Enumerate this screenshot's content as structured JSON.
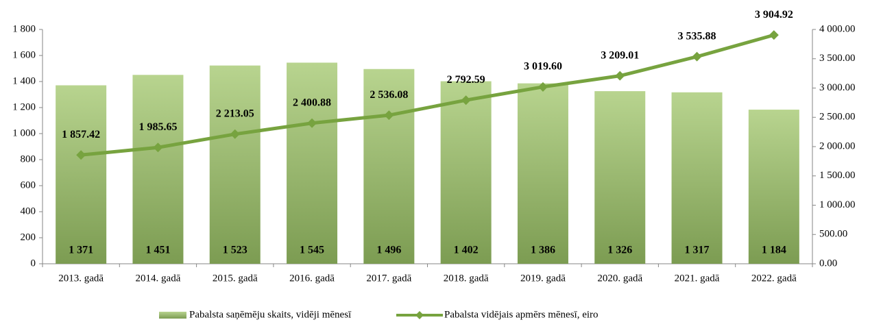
{
  "chart_data": {
    "type": "combo",
    "categories": [
      "2013. gadā",
      "2014. gadā",
      "2015. gadā",
      "2016. gadā",
      "2017. gadā",
      "2018. gadā",
      "2019. gadā",
      "2020. gadā",
      "2021. gadā",
      "2022. gadā"
    ],
    "series": [
      {
        "name": "Pabalsta saņēmēju skaits, vidēji mēnesī",
        "type": "bar",
        "color": "#9dbf6b",
        "values": [
          1371,
          1451,
          1523,
          1545,
          1496,
          1402,
          1386,
          1326,
          1317,
          1184
        ],
        "value_labels": [
          "1 371",
          "1 451",
          "1 523",
          "1 545",
          "1 496",
          "1 402",
          "1 386",
          "1 326",
          "1 317",
          "1 184"
        ]
      },
      {
        "name": "Pabalsta vidējais apmērs mēnesī, eiro",
        "type": "line",
        "axis": "y2",
        "color": "#77a33f",
        "values": [
          1857.42,
          1985.65,
          2213.05,
          2400.88,
          2536.08,
          2792.59,
          3019.6,
          3209.01,
          3535.88,
          3904.92
        ],
        "value_labels": [
          "1 857.42",
          "1 985.65",
          "2 213.05",
          "2 400.88",
          "2 536.08",
          "2 792.59",
          "3 019.60",
          "3 209.01",
          "3 535.88",
          "3 904.92"
        ]
      }
    ],
    "ylim": [
      0,
      1800
    ],
    "yticks": [
      0,
      200,
      400,
      600,
      800,
      {
        "value": 1000,
        "label": "1 000"
      },
      {
        "value": 1200,
        "label": "1 200"
      },
      {
        "value": 1400,
        "label": "1 400"
      },
      {
        "value": 1600,
        "label": "1 600"
      },
      {
        "value": 1800,
        "label": "1 800"
      }
    ],
    "y2lim": [
      0,
      4000
    ],
    "y2ticks": [
      {
        "value": 0,
        "label": "0.00"
      },
      {
        "value": 500,
        "label": "500.00"
      },
      {
        "value": 1000,
        "label": "1 000.00"
      },
      {
        "value": 1500,
        "label": "1 500.00"
      },
      {
        "value": 2000,
        "label": "2 000.00"
      },
      {
        "value": 2500,
        "label": "2 500.00"
      },
      {
        "value": 3000,
        "label": "3 000.00"
      },
      {
        "value": 3500,
        "label": "3 500.00"
      },
      {
        "value": 4000,
        "label": "4 000.00"
      }
    ],
    "legend": "bottom"
  }
}
